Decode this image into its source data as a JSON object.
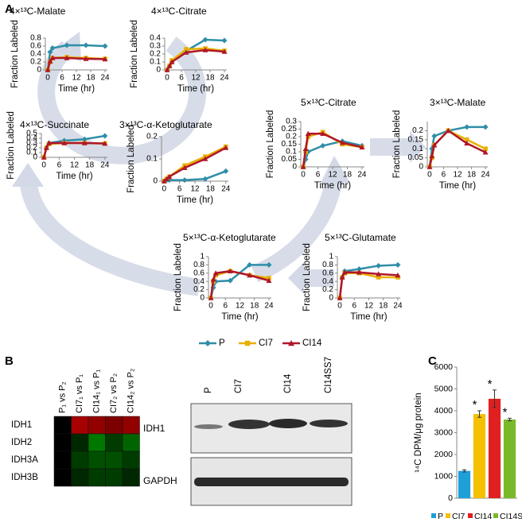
{
  "panel_labels": [
    "A",
    "B",
    "C"
  ],
  "legend_a": [
    {
      "name": "P",
      "color": "#2f8ea8",
      "marker": "diamond"
    },
    {
      "name": "CI7",
      "color": "#e8b000",
      "marker": "square"
    },
    {
      "name": "CI14",
      "color": "#b0172a",
      "marker": "triangle"
    }
  ],
  "blot": {
    "lanes": [
      "P",
      "CI7",
      "CI14",
      "CI14SS7"
    ],
    "rows": [
      "IDH1",
      "GAPDH"
    ]
  },
  "chart_data": [
    {
      "type": "line",
      "title": "4×¹³C-Malate",
      "ylabel": "Fraction Labeled",
      "xlabel": "Time (hr)",
      "x": [
        0,
        1,
        2,
        8,
        16,
        24
      ],
      "xlim": [
        -1,
        25
      ],
      "xticks": [
        0,
        6,
        12,
        18,
        24
      ],
      "ylim": [
        0,
        0.8
      ],
      "yticks": [
        0,
        0.2,
        0.4,
        0.6,
        0.8
      ],
      "series": [
        {
          "values": [
            0,
            0.45,
            0.55,
            0.62,
            0.62,
            0.6
          ]
        },
        {
          "values": [
            0,
            0.2,
            0.3,
            0.32,
            0.3,
            0.28
          ]
        },
        {
          "values": [
            0,
            0.22,
            0.3,
            0.3,
            0.28,
            0.27
          ]
        }
      ]
    },
    {
      "type": "line",
      "title": "4×¹³C-Citrate",
      "ylabel": "Fraction Labeled",
      "xlabel": "Time (hr)",
      "x": [
        0,
        1,
        2,
        8,
        16,
        24
      ],
      "xlim": [
        -1,
        25
      ],
      "xticks": [
        0,
        6,
        12,
        18,
        24
      ],
      "ylim": [
        0,
        0.4
      ],
      "yticks": [
        0,
        0.1,
        0.2,
        0.3,
        0.4
      ],
      "series": [
        {
          "values": [
            0,
            0.05,
            0.1,
            0.24,
            0.38,
            0.37
          ]
        },
        {
          "values": [
            0,
            0.05,
            0.12,
            0.26,
            0.27,
            0.24
          ]
        },
        {
          "values": [
            0,
            0.05,
            0.1,
            0.22,
            0.25,
            0.23
          ]
        }
      ]
    },
    {
      "type": "line",
      "title": "4×¹³C-Succinate",
      "ylabel": "Fraction Labeled",
      "xlabel": "Time (hr)",
      "x": [
        0,
        1,
        2,
        8,
        16,
        24
      ],
      "xlim": [
        -1,
        25
      ],
      "xticks": [
        0,
        6,
        12,
        18,
        24
      ],
      "ylim": [
        0,
        0.5
      ],
      "yticks": [
        0,
        0.1,
        0.2,
        0.3,
        0.4,
        0.5
      ],
      "series": [
        {
          "values": [
            0,
            0.2,
            0.3,
            0.35,
            0.38,
            0.45
          ]
        },
        {
          "values": [
            0,
            0.2,
            0.28,
            0.3,
            0.3,
            0.29
          ]
        },
        {
          "values": [
            0,
            0.2,
            0.3,
            0.3,
            0.3,
            0.29
          ]
        }
      ]
    },
    {
      "type": "line",
      "title": "3×¹³C-α-Ketoglutarate",
      "ylabel": "Fraction Labeled",
      "xlabel": "Time (hr)",
      "x": [
        0,
        1,
        2,
        8,
        16,
        24
      ],
      "xlim": [
        -1,
        25
      ],
      "xticks": [
        0,
        6,
        12,
        18,
        24
      ],
      "ylim": [
        0,
        0.2
      ],
      "yticks": [
        0,
        0.1,
        0.2
      ],
      "series": [
        {
          "values": [
            0,
            0.005,
            0.005,
            0.005,
            0.01,
            0.045
          ]
        },
        {
          "values": [
            0,
            0.01,
            0.02,
            0.07,
            0.11,
            0.155
          ]
        },
        {
          "values": [
            0,
            0.01,
            0.02,
            0.06,
            0.1,
            0.15
          ]
        }
      ]
    },
    {
      "type": "line",
      "title": "5×¹³C-Citrate",
      "ylabel": "Fraction Labeled",
      "xlabel": "Time (hr)",
      "x": [
        0,
        1,
        2,
        8,
        16,
        24
      ],
      "xlim": [
        -1,
        25
      ],
      "xticks": [
        0,
        6,
        12,
        18,
        24
      ],
      "ylim": [
        0,
        0.3
      ],
      "yticks": [
        0,
        0.05,
        0.1,
        0.15,
        0.2,
        0.25,
        0.3
      ],
      "series": [
        {
          "values": [
            0,
            0.05,
            0.1,
            0.14,
            0.17,
            0.14
          ]
        },
        {
          "values": [
            0,
            0.1,
            0.2,
            0.23,
            0.15,
            0.13
          ]
        },
        {
          "values": [
            0,
            0.12,
            0.22,
            0.22,
            0.16,
            0.13
          ]
        }
      ]
    },
    {
      "type": "line",
      "title": "3×¹³C-Malate",
      "ylabel": "Fraction Labeled",
      "xlabel": "Time (hr)",
      "x": [
        0,
        1,
        2,
        8,
        16,
        24
      ],
      "xlim": [
        -1,
        25
      ],
      "xticks": [
        0,
        6,
        12,
        18,
        24
      ],
      "ylim": [
        0,
        0.25
      ],
      "yticks": [
        0,
        0.05,
        0.1,
        0.15,
        0.2
      ],
      "series": [
        {
          "values": [
            0,
            0.1,
            0.17,
            0.2,
            0.22,
            0.22
          ]
        },
        {
          "values": [
            0,
            0.05,
            0.12,
            0.2,
            0.15,
            0.1
          ]
        },
        {
          "values": [
            0,
            0.06,
            0.12,
            0.2,
            0.13,
            0.08
          ]
        }
      ]
    },
    {
      "type": "line",
      "title": "5×¹³C-α-Ketoglutarate",
      "ylabel": "Fraction Labeled",
      "xlabel": "Time (hr)",
      "x": [
        0,
        1,
        2,
        8,
        16,
        24
      ],
      "xlim": [
        -1,
        25
      ],
      "xticks": [
        0,
        6,
        12,
        18,
        24
      ],
      "ylim": [
        0,
        1
      ],
      "yticks": [
        0,
        0.2,
        0.4,
        0.6,
        0.8,
        1
      ],
      "series": [
        {
          "values": [
            0,
            0.25,
            0.4,
            0.42,
            0.8,
            0.8
          ]
        },
        {
          "values": [
            0,
            0.4,
            0.55,
            0.65,
            0.55,
            0.48
          ]
        },
        {
          "values": [
            0,
            0.45,
            0.6,
            0.65,
            0.55,
            0.42
          ]
        }
      ]
    },
    {
      "type": "line",
      "title": "5×¹³C-Glutamate",
      "ylabel": "Fraction Labeled",
      "xlabel": "Time (hr)",
      "x": [
        0,
        1,
        2,
        8,
        16,
        24
      ],
      "xlim": [
        -1,
        25
      ],
      "xticks": [
        0,
        6,
        12,
        18,
        24
      ],
      "ylim": [
        0,
        1
      ],
      "yticks": [
        0,
        0.2,
        0.4,
        0.6,
        0.8,
        1
      ],
      "series": [
        {
          "values": [
            0,
            0.5,
            0.65,
            0.7,
            0.78,
            0.8
          ]
        },
        {
          "values": [
            0,
            0.5,
            0.6,
            0.6,
            0.5,
            0.5
          ]
        },
        {
          "values": [
            0,
            0.5,
            0.62,
            0.62,
            0.58,
            0.55
          ]
        }
      ]
    },
    {
      "type": "heatmap",
      "columns": [
        "P₁ vs P₂",
        "CI7₁ vs P₁",
        "CI14₁ vs P₁",
        "CI7₂ vs P₂",
        "CI14₂ vs P₂"
      ],
      "rows": [
        "IDH1",
        "IDH2",
        "IDH3A",
        "IDH3B"
      ],
      "values": [
        [
          0,
          0.8,
          0.7,
          0.6,
          0.7
        ],
        [
          0,
          -0.2,
          -0.6,
          -0.3,
          -0.5
        ],
        [
          0,
          -0.3,
          -0.4,
          -0.4,
          -0.3
        ],
        [
          0,
          -0.2,
          -0.3,
          -0.3,
          -0.2
        ]
      ],
      "zlim": [
        -1,
        1
      ],
      "colors": [
        "#00c800",
        "#000000",
        "#d00000"
      ]
    },
    {
      "type": "bar",
      "ylabel": "¹⁴C DPM/μg protein",
      "categories": [
        "P",
        "CI7",
        "CI14",
        "CI14SS7"
      ],
      "values": [
        1250,
        3850,
        4550,
        3600
      ],
      "errors": [
        50,
        150,
        400,
        60
      ],
      "colors": [
        "#1f9fd8",
        "#f5c000",
        "#e02020",
        "#7ab929"
      ],
      "ylim": [
        0,
        6000
      ],
      "yticks": [
        0,
        1000,
        2000,
        3000,
        4000,
        5000,
        6000
      ],
      "annotations": [
        {
          "index": 1,
          "text": "*"
        },
        {
          "index": 2,
          "text": "*"
        },
        {
          "index": 3,
          "text": "*"
        }
      ]
    }
  ]
}
